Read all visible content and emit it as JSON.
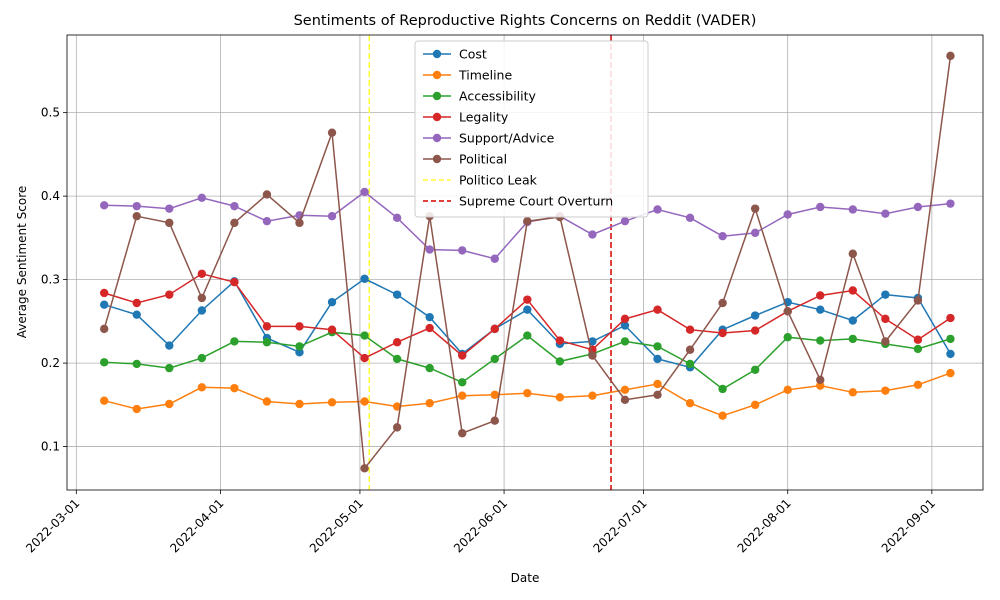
{
  "chart_data": {
    "type": "line",
    "title": "Sentiments of Reproductive Rights Concerns on Reddit (VADER)",
    "xlabel": "Date",
    "ylabel": "Average Sentiment Score",
    "x_ticks": [
      "2022-03-01",
      "2022-04-01",
      "2022-05-01",
      "2022-06-01",
      "2022-07-01",
      "2022-08-01",
      "2022-09-01"
    ],
    "y_ticks": [
      0.1,
      0.2,
      0.3,
      0.4,
      0.5
    ],
    "xlim": [
      "2022-02-27",
      "2022-09-12"
    ],
    "ylim": [
      0.048,
      0.593
    ],
    "grid": true,
    "legend_position": "top-center",
    "x": [
      "2022-03-07",
      "2022-03-14",
      "2022-03-21",
      "2022-03-28",
      "2022-04-04",
      "2022-04-11",
      "2022-04-18",
      "2022-04-25",
      "2022-05-02",
      "2022-05-09",
      "2022-05-16",
      "2022-05-23",
      "2022-05-30",
      "2022-06-06",
      "2022-06-13",
      "2022-06-20",
      "2022-06-27",
      "2022-07-04",
      "2022-07-11",
      "2022-07-18",
      "2022-07-25",
      "2022-08-01",
      "2022-08-08",
      "2022-08-15",
      "2022-08-22",
      "2022-08-29",
      "2022-09-05"
    ],
    "series": [
      {
        "name": "Cost",
        "color": "#1f77b4",
        "values": [
          0.27,
          0.258,
          0.221,
          0.263,
          0.298,
          0.23,
          0.213,
          0.273,
          0.301,
          0.282,
          0.255,
          0.211,
          0.241,
          0.264,
          0.223,
          0.226,
          0.245,
          0.205,
          0.195,
          0.24,
          0.257,
          0.273,
          0.264,
          0.251,
          0.282,
          0.278,
          0.211
        ]
      },
      {
        "name": "Timeline",
        "color": "#ff7f0e",
        "values": [
          0.155,
          0.145,
          0.151,
          0.171,
          0.17,
          0.154,
          0.151,
          0.153,
          0.154,
          0.148,
          0.152,
          0.161,
          0.162,
          0.164,
          0.159,
          0.161,
          0.168,
          0.175,
          0.152,
          0.137,
          0.15,
          0.168,
          0.173,
          0.165,
          0.167,
          0.174,
          0.188
        ]
      },
      {
        "name": "Accessibility",
        "color": "#2ca02c",
        "values": [
          0.201,
          0.199,
          0.194,
          0.206,
          0.226,
          0.225,
          0.22,
          0.237,
          0.233,
          0.205,
          0.194,
          0.177,
          0.205,
          0.233,
          0.202,
          0.211,
          0.226,
          0.22,
          0.199,
          0.169,
          0.192,
          0.231,
          0.227,
          0.229,
          0.223,
          0.217,
          0.229
        ]
      },
      {
        "name": "Legality",
        "color": "#d62728",
        "values": [
          0.284,
          0.272,
          0.282,
          0.307,
          0.297,
          0.244,
          0.244,
          0.24,
          0.206,
          0.225,
          0.242,
          0.209,
          0.241,
          0.276,
          0.227,
          0.216,
          0.253,
          0.264,
          0.24,
          0.236,
          0.239,
          0.262,
          0.281,
          0.287,
          0.253,
          0.228,
          0.254
        ]
      },
      {
        "name": "Support/Advice",
        "color": "#9467bd",
        "values": [
          0.389,
          0.388,
          0.385,
          0.398,
          0.388,
          0.37,
          0.377,
          0.376,
          0.405,
          0.374,
          0.336,
          0.335,
          0.325,
          0.369,
          0.376,
          0.354,
          0.37,
          0.384,
          0.374,
          0.352,
          0.356,
          0.378,
          0.387,
          0.384,
          0.379,
          0.387,
          0.391
        ]
      },
      {
        "name": "Political",
        "color": "#8c564b",
        "values": [
          0.241,
          0.376,
          0.368,
          0.278,
          0.368,
          0.402,
          0.368,
          0.476,
          0.074,
          0.123,
          0.376,
          0.116,
          0.131,
          0.37,
          0.375,
          0.209,
          0.156,
          0.162,
          0.216,
          0.272,
          0.385,
          0.262,
          0.18,
          0.331,
          0.226,
          0.275,
          0.568
        ]
      }
    ],
    "events": [
      {
        "name": "Politico Leak",
        "date": "2022-05-03",
        "color": "#ffff33",
        "style": "dashed"
      },
      {
        "name": "Supreme Court Overturn",
        "date": "2022-06-24",
        "color": "#d60000",
        "style": "dashed"
      }
    ]
  }
}
